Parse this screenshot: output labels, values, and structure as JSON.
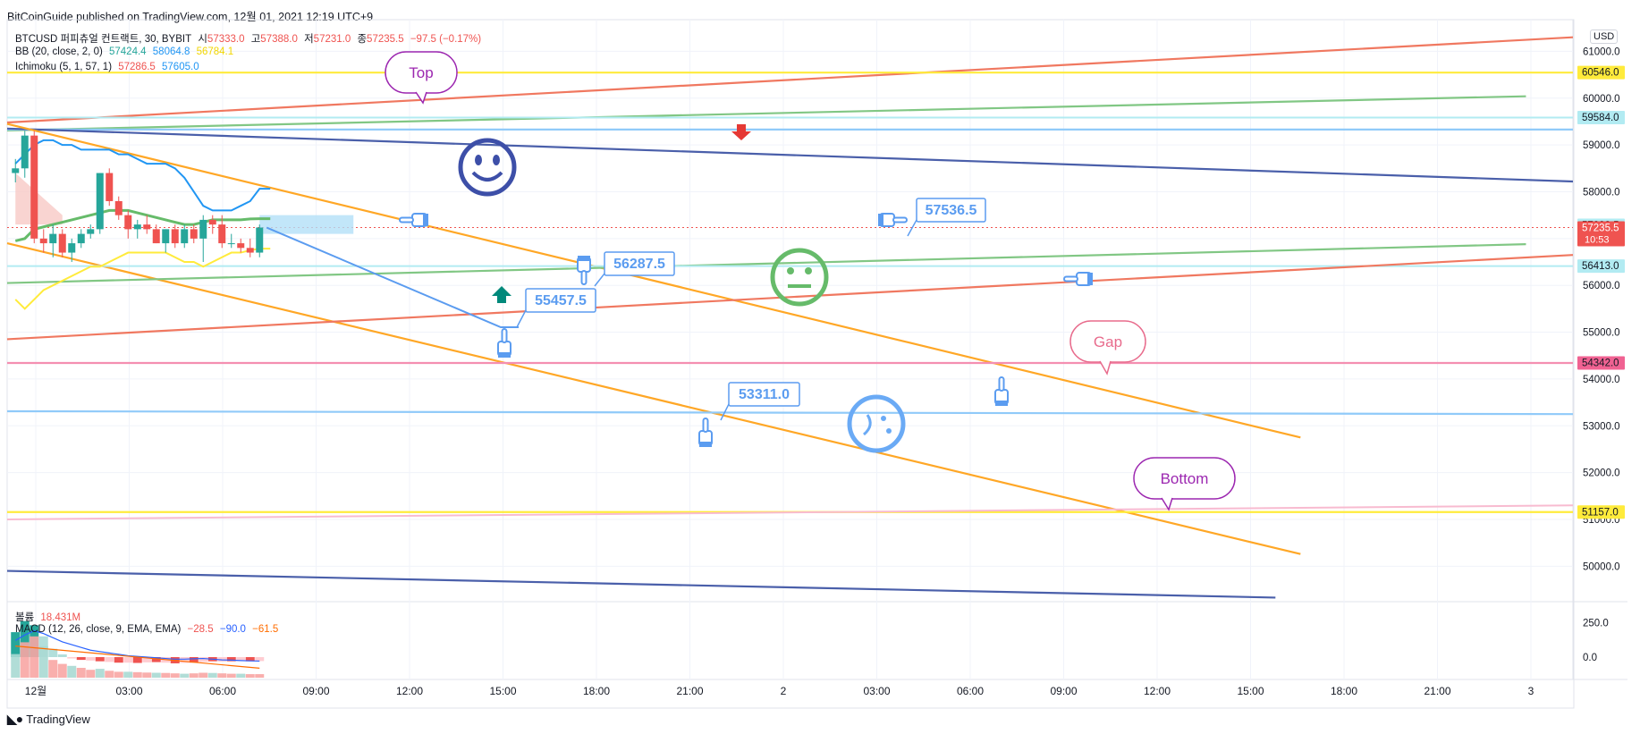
{
  "header": {
    "publisher": "BitCoinGuide published on TradingView.com, 12월 01, 2021 12:19 UTC+9"
  },
  "legend": {
    "line1": {
      "symbol": "BTCUSD 퍼피츄얼 컨트랙트, 30, BYBIT",
      "o_label": "시",
      "o": "57333.0",
      "h_label": "고",
      "h": "57388.0",
      "l_label": "저",
      "l": "57231.0",
      "c_label": "종",
      "c": "57235.5",
      "chg": "−97.5 (−0.17%)"
    },
    "line2": {
      "name": "BB (20, close, 2, 0)",
      "v1": "57424.4",
      "v2": "58064.8",
      "v3": "56784.1"
    },
    "line3": {
      "name": "Ichimoku (5, 1, 57, 1)",
      "v1": "57286.5",
      "v2": "57605.0"
    },
    "vol": {
      "name": "볼륨",
      "value": "18.431M"
    },
    "macd": {
      "name": "MACD (12, 26, close, 9, EMA, EMA)",
      "v1": "−28.5",
      "v2": "−90.0",
      "v3": "−61.5"
    }
  },
  "currency": "USD",
  "footer": {
    "brand": "TradingView"
  },
  "colors": {
    "up": "#26a69a",
    "down": "#ef5350",
    "accent": "#2962ff",
    "orange": "#ffa726",
    "red_line": "#f07860",
    "green_line": "#81c784",
    "navy": "#4a5faa",
    "yellow": "#ffeb3b",
    "pink": "#f48fb1",
    "bb_blue": "#2196f3",
    "callout_blue": "#5b9cf0"
  },
  "chart_data": {
    "type": "candlestick",
    "symbol": "BTCUSD",
    "interval": "30",
    "exchange": "BYBIT",
    "ylim": [
      49300,
      61600
    ],
    "y_ticks": [
      "61000.0",
      "60000.0",
      "59000.0",
      "58000.0",
      "57000.0",
      "56000.0",
      "55000.0",
      "54000.0",
      "53000.0",
      "52000.0",
      "51000.0",
      "50000.0"
    ],
    "x_ticks": [
      "12월",
      "03:00",
      "06:00",
      "09:00",
      "12:00",
      "15:00",
      "18:00",
      "21:00",
      "2",
      "03:00",
      "06:00",
      "09:00",
      "12:00",
      "15:00",
      "18:00",
      "21:00",
      "3"
    ],
    "price_tags": [
      {
        "label": "60546.0",
        "value": 60546,
        "bg": "#ffeb3b",
        "fg": "#131722"
      },
      {
        "label": "59584.0",
        "value": 59584,
        "bg": "#b2ebf2",
        "fg": "#131722"
      },
      {
        "label": "57283.5",
        "value": 57283.5,
        "bg": "#b2ebf2",
        "fg": "#131722"
      },
      {
        "label": "57235.5",
        "value": 57235.5,
        "bg": "#ef5350",
        "fg": "#ffffff",
        "extra": "10:53"
      },
      {
        "label": "56413.0",
        "value": 56413,
        "bg": "#b2ebf2",
        "fg": "#131722"
      },
      {
        "label": "54342.0",
        "value": 54342,
        "bg": "#f06292",
        "fg": "#131722"
      },
      {
        "label": "51157.0",
        "value": 51157,
        "bg": "#ffeb3b",
        "fg": "#131722"
      }
    ],
    "candles": [
      {
        "o": 58400,
        "h": 58700,
        "l": 58200,
        "c": 58500
      },
      {
        "o": 58500,
        "h": 59300,
        "l": 58300,
        "c": 59200
      },
      {
        "o": 59200,
        "h": 59300,
        "l": 56900,
        "c": 57000
      },
      {
        "o": 57000,
        "h": 57200,
        "l": 56700,
        "c": 56900
      },
      {
        "o": 56900,
        "h": 57300,
        "l": 56600,
        "c": 57100
      },
      {
        "o": 57100,
        "h": 57200,
        "l": 56600,
        "c": 56700
      },
      {
        "o": 56700,
        "h": 57000,
        "l": 56500,
        "c": 56900
      },
      {
        "o": 56900,
        "h": 57200,
        "l": 56800,
        "c": 57100
      },
      {
        "o": 57100,
        "h": 57300,
        "l": 57000,
        "c": 57200
      },
      {
        "o": 57200,
        "h": 58400,
        "l": 57100,
        "c": 58400
      },
      {
        "o": 58400,
        "h": 58500,
        "l": 57700,
        "c": 57800
      },
      {
        "o": 57800,
        "h": 57900,
        "l": 57400,
        "c": 57500
      },
      {
        "o": 57500,
        "h": 57600,
        "l": 57000,
        "c": 57200
      },
      {
        "o": 57200,
        "h": 57400,
        "l": 57000,
        "c": 57300
      },
      {
        "o": 57300,
        "h": 57500,
        "l": 57100,
        "c": 57200
      },
      {
        "o": 57200,
        "h": 57300,
        "l": 56900,
        "c": 56900
      },
      {
        "o": 56900,
        "h": 57200,
        "l": 56700,
        "c": 57200
      },
      {
        "o": 57200,
        "h": 57300,
        "l": 56800,
        "c": 56900
      },
      {
        "o": 56900,
        "h": 57300,
        "l": 56800,
        "c": 57200
      },
      {
        "o": 57200,
        "h": 57300,
        "l": 56900,
        "c": 57000
      },
      {
        "o": 57000,
        "h": 57500,
        "l": 56500,
        "c": 57400
      },
      {
        "o": 57400,
        "h": 57500,
        "l": 57100,
        "c": 57300
      },
      {
        "o": 57300,
        "h": 57500,
        "l": 56800,
        "c": 56900
      },
      {
        "o": 56900,
        "h": 57100,
        "l": 56800,
        "c": 56900
      },
      {
        "o": 56900,
        "h": 57000,
        "l": 56700,
        "c": 56800
      },
      {
        "o": 56800,
        "h": 57000,
        "l": 56600,
        "c": 56700
      },
      {
        "o": 56700,
        "h": 57300,
        "l": 56600,
        "c": 57235.5
      }
    ],
    "bb_upper": [
      58600,
      58800,
      59000,
      59100,
      59100,
      59000,
      59000,
      58900,
      58900,
      58900,
      58900,
      58800,
      58800,
      58700,
      58600,
      58600,
      58600,
      58500,
      58300,
      58000,
      57700,
      57600,
      57600,
      57600,
      57700,
      57800,
      58064.8
    ],
    "bb_lower": [
      55700,
      55500,
      55700,
      55900,
      56000,
      56100,
      56200,
      56300,
      56400,
      56400,
      56500,
      56600,
      56700,
      56700,
      56700,
      56700,
      56700,
      56600,
      56500,
      56500,
      56400,
      56500,
      56600,
      56700,
      56700,
      56750,
      56784.1
    ],
    "bb_basis": [
      56950,
      57000,
      57200,
      57250,
      57300,
      57350,
      57400,
      57450,
      57500,
      57550,
      57600,
      57600,
      57600,
      57550,
      57500,
      57450,
      57400,
      57350,
      57300,
      57300,
      57350,
      57400,
      57400,
      57400,
      57400,
      57420,
      57424.4
    ],
    "lines": [
      {
        "name": "red-upper-line",
        "color": "#f07860",
        "x": [
          0,
          1.0
        ],
        "y": [
          59480,
          61300
        ]
      },
      {
        "name": "yellow-top-line",
        "color": "#ffeb3b",
        "x": [
          0,
          1.0
        ],
        "y": [
          60546,
          60546
        ]
      },
      {
        "name": "green-upper-line",
        "color": "#81c784",
        "x": [
          0,
          0.97
        ],
        "y": [
          59310,
          60040
        ]
      },
      {
        "name": "light-blue-59584-line",
        "color": "#90caf9",
        "x": [
          0,
          1.0
        ],
        "y": [
          59330,
          59330
        ]
      },
      {
        "name": "cyan-59584-line",
        "color": "#b2ebf2",
        "x": [
          0,
          1.0
        ],
        "y": [
          59584,
          59584
        ]
      },
      {
        "name": "navy-upper-line",
        "color": "#4a5faa",
        "x": [
          0,
          1.0
        ],
        "y": [
          59350,
          58220
        ]
      },
      {
        "name": "orange-upper-channel",
        "color": "#ffa726",
        "x": [
          0,
          0.826
        ],
        "y": [
          59450,
          52750
        ]
      },
      {
        "name": "orange-lower-channel",
        "color": "#ffa726",
        "x": [
          0,
          0.826
        ],
        "y": [
          56900,
          50260
        ]
      },
      {
        "name": "green-lower-line",
        "color": "#81c784",
        "x": [
          0,
          0.97
        ],
        "y": [
          56050,
          56880
        ]
      },
      {
        "name": "cyan-56413-line",
        "color": "#b2ebf2",
        "x": [
          0,
          1.0
        ],
        "y": [
          56413,
          56413
        ]
      },
      {
        "name": "red-lower-line",
        "color": "#f07860",
        "x": [
          0,
          1.0
        ],
        "y": [
          54850,
          56650
        ]
      },
      {
        "name": "pink-54342-line",
        "color": "#f48fb1",
        "x": [
          0,
          1.0
        ],
        "y": [
          54342,
          54342
        ]
      },
      {
        "name": "blue-53311-line",
        "color": "#90caf9",
        "x": [
          0,
          1.0
        ],
        "y": [
          53311,
          53250
        ]
      },
      {
        "name": "yellow-bottom-line",
        "color": "#ffeb3b",
        "x": [
          0,
          1.0
        ],
        "y": [
          51157,
          51157
        ]
      },
      {
        "name": "pink-bottom-line",
        "color": "#f8bbd0",
        "x": [
          0,
          1.0
        ],
        "y": [
          51000,
          51300
        ]
      },
      {
        "name": "navy-lower-line",
        "color": "#4a5faa",
        "x": [
          0,
          0.81
        ],
        "y": [
          49900,
          49330
        ]
      }
    ],
    "callouts": [
      {
        "label": "Top",
        "color": "#9c27b0"
      },
      {
        "label": "Gap",
        "color": "#e86b8c"
      },
      {
        "label": "Bottom",
        "color": "#9c27b0"
      },
      {
        "label": "57536.5",
        "color": "#5b9cf0"
      },
      {
        "label": "56287.5",
        "color": "#5b9cf0"
      },
      {
        "label": "55457.5",
        "color": "#5b9cf0"
      },
      {
        "label": "53311.0",
        "color": "#5b9cf0"
      }
    ],
    "macd_ticks": [
      "250.0",
      "0.0"
    ]
  }
}
